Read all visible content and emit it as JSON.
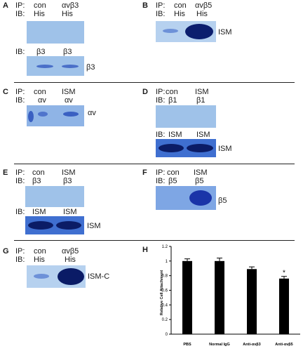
{
  "panels": {
    "A": {
      "letter": "A",
      "ip_label": "IP:",
      "ip_con": "con",
      "ip_target": "αvβ3",
      "ib1_label": "IB:",
      "ib1_con": "His",
      "ib1_target": "His",
      "ib2_label": "IB:",
      "ib2_con": "β3",
      "ib2_target": "β3",
      "side_label": "β3"
    },
    "B": {
      "letter": "B",
      "ip_label": "IP:",
      "ip_con": "con",
      "ip_target": "αvβ5",
      "ib_label": "IB:",
      "ib_con": "His",
      "ib_target": "His",
      "side_label": "ISM"
    },
    "C": {
      "letter": "C",
      "ip_label": "IP:",
      "ip_con": "con",
      "ip_target": "ISM",
      "ib_label": "IB:",
      "ib_con": "αv",
      "ib_target": "αv",
      "side_label": "αv"
    },
    "D": {
      "letter": "D",
      "ip_label": "IP:",
      "ip_con": "con",
      "ip_target": "ISM",
      "ib1_label": "IB:",
      "ib1_con": "β1",
      "ib1_target": "β1",
      "ib2_label": "IB:",
      "ib2_con": "ISM",
      "ib2_target": "ISM",
      "side_label": "ISM"
    },
    "E": {
      "letter": "E",
      "ip_label": "IP:",
      "ip_con": "con",
      "ip_target": "ISM",
      "ib1_label": "IB:",
      "ib1_con": "β3",
      "ib1_target": "β3",
      "ib2_label": "IB:",
      "ib2_con": "ISM",
      "ib2_target": "ISM",
      "side_label": "ISM"
    },
    "F": {
      "letter": "F",
      "ip_label": "IP:",
      "ip_con": "con",
      "ip_target": "ISM",
      "ib_label": "IB:",
      "ib_con": "β5",
      "ib_target": "β5",
      "side_label": "β5"
    },
    "G": {
      "letter": "G",
      "ip_label": "IP:",
      "ip_con": "con",
      "ip_target": "αvβ5",
      "ib_label": "IB:",
      "ib_con": "His",
      "ib_target": "His",
      "side_label": "ISM-C"
    },
    "H": {
      "letter": "H"
    }
  },
  "chart_data": {
    "type": "bar",
    "title": "",
    "xlabel": "",
    "ylabel": "Relative Cell Attachment",
    "ylim": [
      0,
      1.2
    ],
    "yticks": [
      "0",
      "0.2",
      "0.4",
      "0.6",
      "0.8",
      "1",
      "1.2"
    ],
    "categories": [
      "PBS",
      "Normal IgG",
      "Anti-αvβ3",
      "Anti-αvβ5"
    ],
    "values": [
      1.0,
      1.0,
      0.89,
      0.76
    ],
    "errors": [
      0.03,
      0.04,
      0.03,
      0.03
    ],
    "annotation": "*",
    "annotation_index": 3,
    "bar_color": "#000000"
  }
}
